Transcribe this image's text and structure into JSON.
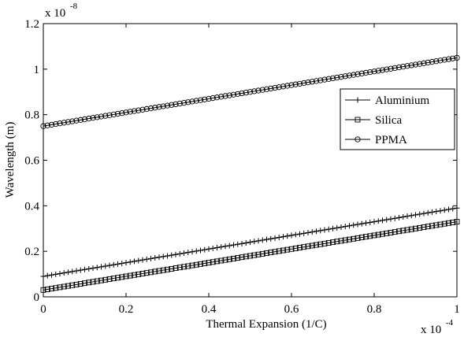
{
  "chart_data": {
    "type": "line",
    "xlabel": "Thermal Expansion (1/C)",
    "ylabel": "Wavelength (m)",
    "x_exponent_label": "x 10",
    "x_exponent_power": "-4",
    "y_exponent_label": "x 10",
    "y_exponent_power": "-8",
    "xlim": [
      0,
      1
    ],
    "ylim": [
      0,
      1.2
    ],
    "xticks": [
      "0",
      "0.2",
      "0.4",
      "0.6",
      "0.8",
      "1"
    ],
    "yticks": [
      "0",
      "0.2",
      "0.4",
      "0.6",
      "0.8",
      "1",
      "1.2"
    ],
    "legend_position": "right",
    "grid": false,
    "series": [
      {
        "name": "Aluminium",
        "marker": "plus",
        "x": [
          0,
          1
        ],
        "y": [
          0.09,
          0.39
        ]
      },
      {
        "name": "Silica",
        "marker": "square",
        "x": [
          0,
          1
        ],
        "y": [
          0.03,
          0.33
        ]
      },
      {
        "name": "PPMA",
        "marker": "circle",
        "x": [
          0,
          1
        ],
        "y": [
          0.75,
          1.05
        ]
      }
    ],
    "marker_count": 101
  }
}
